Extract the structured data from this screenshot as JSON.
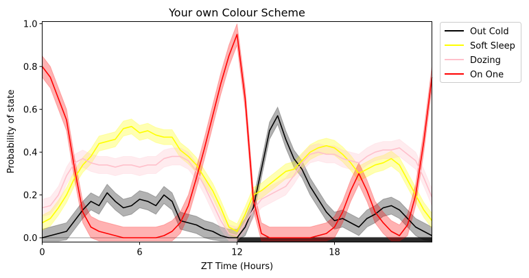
{
  "chart_data": {
    "type": "line",
    "title": "Your own Colour Scheme",
    "xlabel": "ZT Time (Hours)",
    "ylabel": "Probability of state",
    "xlim": [
      0,
      24
    ],
    "ylim": [
      -0.02,
      1.01
    ],
    "xticks": [
      "0",
      "6",
      "12",
      "18"
    ],
    "xtick_values": [
      0,
      6,
      12,
      18
    ],
    "yticks": [
      "0.0",
      "0.2",
      "0.4",
      "0.6",
      "0.8",
      "1.0"
    ],
    "ytick_values": [
      0.0,
      0.2,
      0.4,
      0.6,
      0.8,
      1.0
    ],
    "legend_position": "outside-top-right",
    "dark_phase": [
      12,
      24
    ],
    "x": [
      0,
      0.5,
      1,
      1.5,
      2,
      2.5,
      3,
      3.5,
      4,
      4.5,
      5,
      5.5,
      6,
      6.5,
      7,
      7.5,
      8,
      8.5,
      9,
      9.5,
      10,
      10.5,
      11,
      11.5,
      12,
      12.5,
      13,
      13.5,
      14,
      14.5,
      15,
      15.5,
      16,
      16.5,
      17,
      17.5,
      18,
      18.5,
      19,
      19.5,
      20,
      20.5,
      21,
      21.5,
      22,
      22.5,
      23,
      23.5,
      24
    ],
    "series": [
      {
        "name": "Out Cold",
        "color": "#000000",
        "band": 0.04,
        "values": [
          0.0,
          0.01,
          0.02,
          0.03,
          0.08,
          0.13,
          0.17,
          0.15,
          0.21,
          0.17,
          0.14,
          0.15,
          0.18,
          0.17,
          0.15,
          0.2,
          0.17,
          0.08,
          0.07,
          0.06,
          0.04,
          0.03,
          0.01,
          0.0,
          0.0,
          0.05,
          0.14,
          0.32,
          0.5,
          0.57,
          0.46,
          0.37,
          0.32,
          0.24,
          0.18,
          0.12,
          0.08,
          0.09,
          0.07,
          0.05,
          0.09,
          0.11,
          0.14,
          0.15,
          0.13,
          0.09,
          0.05,
          0.03,
          0.01
        ]
      },
      {
        "name": "Soft Sleep",
        "color": "#ffff00",
        "band": 0.035,
        "values": [
          0.07,
          0.09,
          0.14,
          0.2,
          0.28,
          0.34,
          0.38,
          0.44,
          0.45,
          0.46,
          0.51,
          0.52,
          0.49,
          0.5,
          0.48,
          0.47,
          0.47,
          0.41,
          0.38,
          0.34,
          0.28,
          0.22,
          0.14,
          0.05,
          0.03,
          0.11,
          0.2,
          0.22,
          0.25,
          0.28,
          0.31,
          0.32,
          0.36,
          0.4,
          0.42,
          0.43,
          0.42,
          0.39,
          0.35,
          0.3,
          0.32,
          0.34,
          0.35,
          0.37,
          0.34,
          0.27,
          0.2,
          0.13,
          0.08
        ]
      },
      {
        "name": "Dozing",
        "color": "#ffc0cb",
        "band": 0.04,
        "values": [
          0.14,
          0.15,
          0.2,
          0.29,
          0.35,
          0.37,
          0.35,
          0.34,
          0.34,
          0.33,
          0.34,
          0.34,
          0.33,
          0.34,
          0.34,
          0.37,
          0.38,
          0.38,
          0.36,
          0.31,
          0.24,
          0.16,
          0.08,
          0.02,
          0.01,
          0.07,
          0.13,
          0.18,
          0.2,
          0.22,
          0.24,
          0.29,
          0.35,
          0.39,
          0.4,
          0.39,
          0.39,
          0.37,
          0.36,
          0.35,
          0.38,
          0.4,
          0.41,
          0.41,
          0.42,
          0.39,
          0.36,
          0.28,
          0.19
        ]
      },
      {
        "name": "On One",
        "color": "#ff0000",
        "band": 0.05,
        "values": [
          0.8,
          0.75,
          0.65,
          0.55,
          0.32,
          0.12,
          0.05,
          0.03,
          0.02,
          0.01,
          0.0,
          0.0,
          0.0,
          0.0,
          0.0,
          0.01,
          0.03,
          0.07,
          0.15,
          0.28,
          0.42,
          0.57,
          0.72,
          0.85,
          0.95,
          0.65,
          0.18,
          0.02,
          0.0,
          0.0,
          0.0,
          0.0,
          0.0,
          0.0,
          0.01,
          0.02,
          0.05,
          0.12,
          0.22,
          0.3,
          0.22,
          0.12,
          0.07,
          0.03,
          0.01,
          0.06,
          0.2,
          0.45,
          0.75
        ]
      }
    ]
  }
}
